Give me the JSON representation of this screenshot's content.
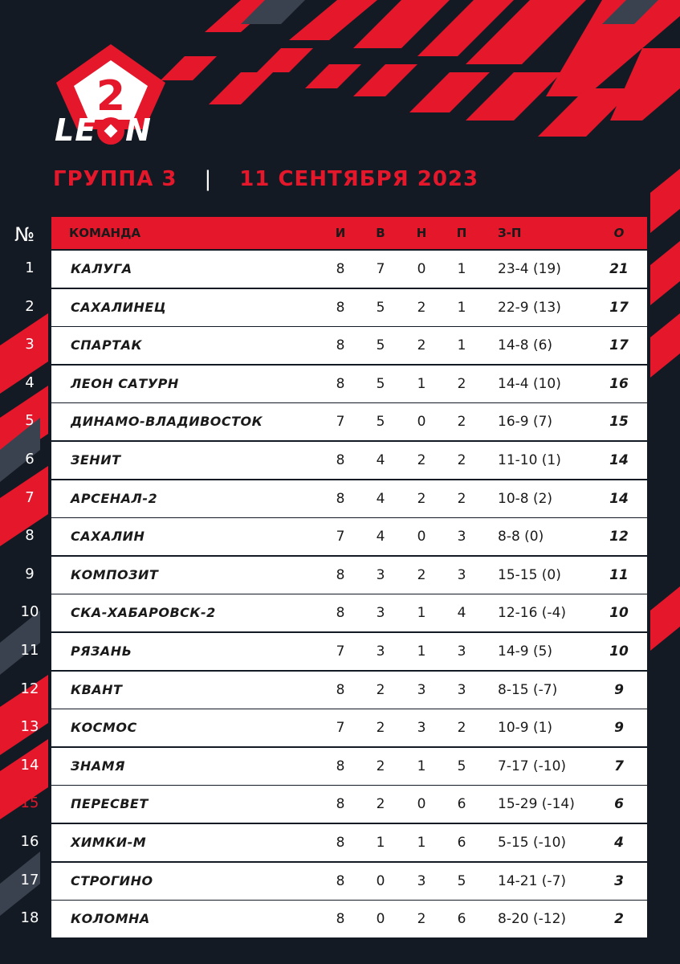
{
  "brand": {
    "logo_text": "LEON",
    "badge_number": "2",
    "accent_color": "#e4172b",
    "background_color": "#141a24"
  },
  "subtitle": {
    "group": "ГРУППА 3",
    "separator": "|",
    "date": "11 СЕНТЯБРЯ 2023"
  },
  "table": {
    "rank_header": "№",
    "columns": [
      "КОМАНДА",
      "И",
      "В",
      "Н",
      "П",
      "З-П",
      "О"
    ],
    "rows": [
      {
        "rank": "1",
        "team": "КАЛУГА",
        "i": "8",
        "v": "7",
        "n": "0",
        "p": "1",
        "zp": "23-4 (19)",
        "o": "21"
      },
      {
        "rank": "2",
        "team": "САХАЛИНЕЦ",
        "i": "8",
        "v": "5",
        "n": "2",
        "p": "1",
        "zp": "22-9 (13)",
        "o": "17"
      },
      {
        "rank": "3",
        "team": "СПАРТАК",
        "i": "8",
        "v": "5",
        "n": "2",
        "p": "1",
        "zp": "14-8 (6)",
        "o": "17"
      },
      {
        "rank": "4",
        "team": "ЛЕОН САТУРН",
        "i": "8",
        "v": "5",
        "n": "1",
        "p": "2",
        "zp": "14-4 (10)",
        "o": "16"
      },
      {
        "rank": "5",
        "team": "ДИНАМО-ВЛАДИВОСТОК",
        "i": "7",
        "v": "5",
        "n": "0",
        "p": "2",
        "zp": "16-9 (7)",
        "o": "15"
      },
      {
        "rank": "6",
        "team": "ЗЕНИТ",
        "i": "8",
        "v": "4",
        "n": "2",
        "p": "2",
        "zp": "11-10 (1)",
        "o": "14"
      },
      {
        "rank": "7",
        "team": "АРСЕНАЛ-2",
        "i": "8",
        "v": "4",
        "n": "2",
        "p": "2",
        "zp": "10-8 (2)",
        "o": "14"
      },
      {
        "rank": "8",
        "team": "САХАЛИН",
        "i": "7",
        "v": "4",
        "n": "0",
        "p": "3",
        "zp": "8-8 (0)",
        "o": "12"
      },
      {
        "rank": "9",
        "team": "КОМПОЗИТ",
        "i": "8",
        "v": "3",
        "n": "2",
        "p": "3",
        "zp": "15-15 (0)",
        "o": "11"
      },
      {
        "rank": "10",
        "team": "СКА-ХАБАРОВСК-2",
        "i": "8",
        "v": "3",
        "n": "1",
        "p": "4",
        "zp": "12-16 (-4)",
        "o": "10"
      },
      {
        "rank": "11",
        "team": "РЯЗАНЬ",
        "i": "7",
        "v": "3",
        "n": "1",
        "p": "3",
        "zp": "14-9 (5)",
        "o": "10"
      },
      {
        "rank": "12",
        "team": "КВАНТ",
        "i": "8",
        "v": "2",
        "n": "3",
        "p": "3",
        "zp": "8-15 (-7)",
        "o": "9"
      },
      {
        "rank": "13",
        "team": "КОСМОС",
        "i": "7",
        "v": "2",
        "n": "3",
        "p": "2",
        "zp": "10-9 (1)",
        "o": "9"
      },
      {
        "rank": "14",
        "team": "ЗНАМЯ",
        "i": "8",
        "v": "2",
        "n": "1",
        "p": "5",
        "zp": "7-17 (-10)",
        "o": "7"
      },
      {
        "rank": "15",
        "team": "ПЕРЕСВЕТ",
        "i": "8",
        "v": "2",
        "n": "0",
        "p": "6",
        "zp": "15-29 (-14)",
        "o": "6"
      },
      {
        "rank": "16",
        "team": "ХИМКИ-М",
        "i": "8",
        "v": "1",
        "n": "1",
        "p": "6",
        "zp": "5-15 (-10)",
        "o": "4"
      },
      {
        "rank": "17",
        "team": "СТРОГИНО",
        "i": "8",
        "v": "0",
        "n": "3",
        "p": "5",
        "zp": "14-21 (-7)",
        "o": "3"
      },
      {
        "rank": "18",
        "team": "КОЛОМНА",
        "i": "8",
        "v": "0",
        "n": "2",
        "p": "6",
        "zp": "8-20 (-12)",
        "o": "2"
      }
    ]
  }
}
